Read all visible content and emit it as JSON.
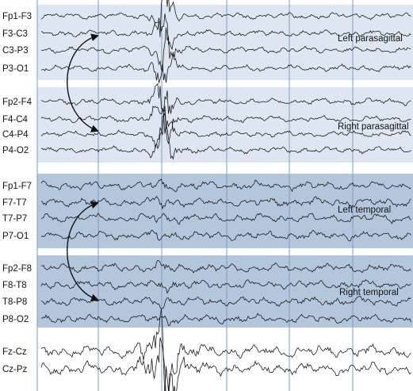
{
  "colors": {
    "band_light": "#dde6f1",
    "band_dark": "#b4c6dc",
    "gridline": "#7e9dc4",
    "trace": "#111111",
    "background": "#ffffff"
  },
  "groups": [
    {
      "name": "Left parasagittal",
      "shade": "light",
      "channels": [
        "Fp1-F3",
        "F3-C3",
        "C3-P3",
        "P3-O1"
      ]
    },
    {
      "name": "Right parasagittal",
      "shade": "light",
      "channels": [
        "Fp2-F4",
        "F4-C4",
        "C4-P4",
        "P4-O2"
      ]
    },
    {
      "name": "Left temporal",
      "shade": "dark",
      "channels": [
        "Fp1-F7",
        "F7-T7",
        "T7-P7",
        "P7-O1"
      ]
    },
    {
      "name": "Right temporal",
      "shade": "dark",
      "channels": [
        "Fp2-F8",
        "F8-T8",
        "T8-P8",
        "P8-O2"
      ]
    },
    {
      "name": "",
      "shade": "none",
      "channels": [
        "Fz-Cz",
        "Cz-Pz"
      ]
    }
  ],
  "arrows": [
    {
      "from": "Left parasagittal",
      "to": "Right parasagittal",
      "type": "bidirectional-curved"
    },
    {
      "from": "Left temporal",
      "to": "Right temporal",
      "type": "bidirectional-curved"
    }
  ]
}
